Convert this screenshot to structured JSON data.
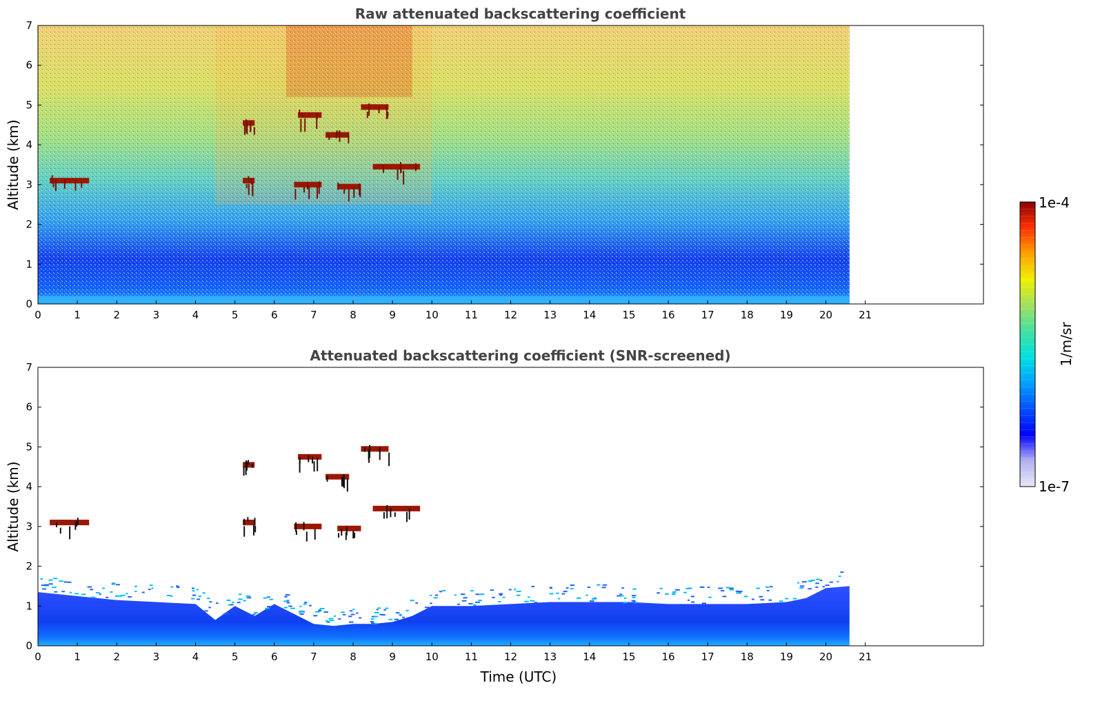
{
  "chart_data": [
    {
      "type": "heatmap",
      "title": "Raw attenuated backscattering coefficient",
      "xlabel": "",
      "ylabel": "Altitude (km)",
      "xlim": [
        0,
        24
      ],
      "ylim": [
        0,
        7
      ],
      "x_ticks": [
        0,
        1,
        2,
        3,
        4,
        5,
        6,
        7,
        8,
        9,
        10,
        11,
        12,
        13,
        14,
        15,
        16,
        17,
        18,
        19,
        20,
        21
      ],
      "y_ticks": [
        0,
        1,
        2,
        3,
        4,
        5,
        6,
        7
      ],
      "data_end_time": 20.6,
      "grid": false,
      "features": [
        {
          "kind": "boundary-layer",
          "altitude_top_km": 1.0
        },
        {
          "kind": "cloud",
          "time": [
            6.6,
            7.2
          ],
          "altitude_km": 4.75
        },
        {
          "kind": "cloud",
          "time": [
            8.2,
            8.9
          ],
          "altitude_km": 4.95
        },
        {
          "kind": "cloud",
          "time": [
            5.2,
            5.5
          ],
          "altitude_km": 4.55
        },
        {
          "kind": "cloud",
          "time": [
            7.3,
            7.9
          ],
          "altitude_km": 4.25
        },
        {
          "kind": "cloud",
          "time": [
            8.5,
            9.7
          ],
          "altitude_km": 3.45
        },
        {
          "kind": "cloud",
          "time": [
            0.3,
            1.3
          ],
          "altitude_km": 3.1
        },
        {
          "kind": "cloud",
          "time": [
            5.2,
            5.5
          ],
          "altitude_km": 3.1
        },
        {
          "kind": "cloud",
          "time": [
            6.5,
            7.2
          ],
          "altitude_km": 3.0
        },
        {
          "kind": "cloud",
          "time": [
            7.6,
            8.2
          ],
          "altitude_km": 2.95
        }
      ]
    },
    {
      "type": "heatmap",
      "title": "Attenuated backscattering coefficient (SNR-screened)",
      "xlabel": "Time (UTC)",
      "ylabel": "Altitude (km)",
      "xlim": [
        0,
        24
      ],
      "ylim": [
        0,
        7
      ],
      "x_ticks": [
        0,
        1,
        2,
        3,
        4,
        5,
        6,
        7,
        8,
        9,
        10,
        11,
        12,
        13,
        14,
        15,
        16,
        17,
        18,
        19,
        20,
        21
      ],
      "y_ticks": [
        0,
        1,
        2,
        3,
        4,
        5,
        6,
        7
      ],
      "data_end_time": 20.6,
      "grid": false,
      "boundary_layer_top_km": [
        [
          0,
          1.35
        ],
        [
          1,
          1.25
        ],
        [
          2,
          1.15
        ],
        [
          3,
          1.1
        ],
        [
          4,
          1.05
        ],
        [
          4.5,
          0.65
        ],
        [
          5,
          1.0
        ],
        [
          5.5,
          0.75
        ],
        [
          6,
          1.05
        ],
        [
          6.5,
          0.8
        ],
        [
          7,
          0.55
        ],
        [
          7.5,
          0.5
        ],
        [
          8,
          0.55
        ],
        [
          8.5,
          0.55
        ],
        [
          9,
          0.6
        ],
        [
          9.5,
          0.75
        ],
        [
          10,
          1.0
        ],
        [
          11,
          1.0
        ],
        [
          12,
          1.05
        ],
        [
          13,
          1.1
        ],
        [
          14,
          1.1
        ],
        [
          15,
          1.1
        ],
        [
          16,
          1.05
        ],
        [
          17,
          1.05
        ],
        [
          18,
          1.05
        ],
        [
          19,
          1.1
        ],
        [
          19.5,
          1.2
        ],
        [
          20,
          1.45
        ],
        [
          20.6,
          1.5
        ]
      ],
      "features": [
        {
          "kind": "cloud",
          "time": [
            6.6,
            7.2
          ],
          "altitude_km": 4.75
        },
        {
          "kind": "cloud",
          "time": [
            8.2,
            8.9
          ],
          "altitude_km": 4.95
        },
        {
          "kind": "cloud",
          "time": [
            5.2,
            5.5
          ],
          "altitude_km": 4.55
        },
        {
          "kind": "cloud",
          "time": [
            7.3,
            7.9
          ],
          "altitude_km": 4.25
        },
        {
          "kind": "cloud",
          "time": [
            8.5,
            9.7
          ],
          "altitude_km": 3.45
        },
        {
          "kind": "cloud",
          "time": [
            0.3,
            1.3
          ],
          "altitude_km": 3.1
        },
        {
          "kind": "cloud",
          "time": [
            5.2,
            5.5
          ],
          "altitude_km": 3.1
        },
        {
          "kind": "cloud",
          "time": [
            6.5,
            7.2
          ],
          "altitude_km": 3.0
        },
        {
          "kind": "cloud",
          "time": [
            7.6,
            8.2
          ],
          "altitude_km": 2.95
        }
      ]
    }
  ],
  "colorbar": {
    "label": "1/m/sr",
    "max_label": "1e-4",
    "min_label": "1e-7",
    "colors": [
      "#e8e8f8",
      "#b0b0f0",
      "#0000ff",
      "#0050ff",
      "#00a0ff",
      "#00e0e0",
      "#40e0a0",
      "#a0e060",
      "#f0f000",
      "#ffa000",
      "#ff3000",
      "#8b0000"
    ]
  }
}
